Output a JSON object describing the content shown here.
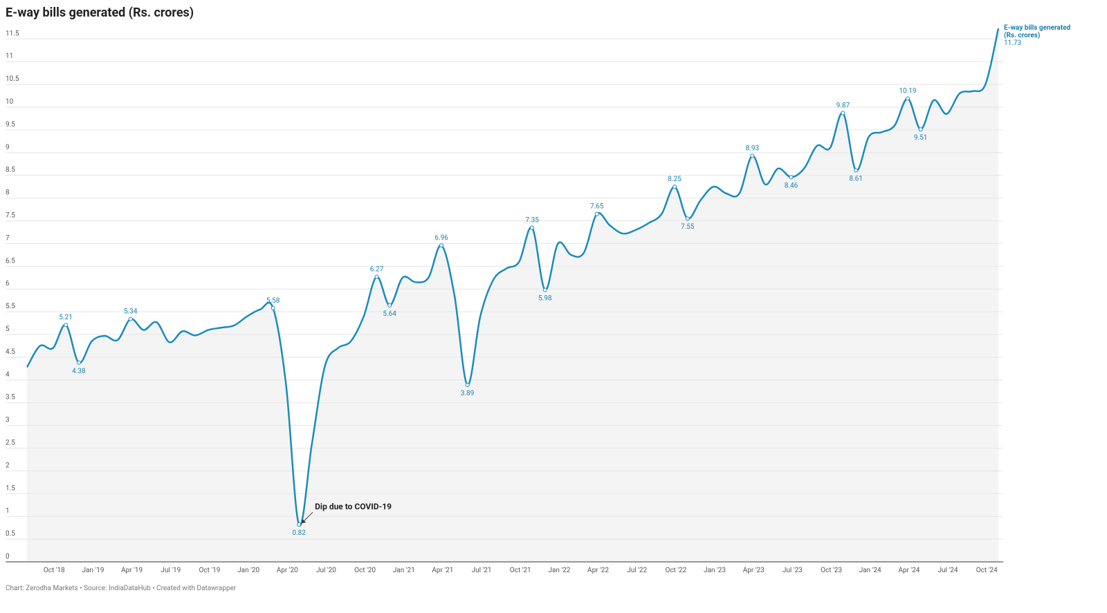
{
  "chart_data": {
    "type": "line",
    "title": "E-way bills generated (Rs. crores)",
    "footer": "Chart: Zerodha Markets • Source: IndiaDataHub • Created with Datawrapper",
    "annotation": "Dip due to COVID-19",
    "categories": [
      null,
      null,
      null,
      "Oct '18",
      null,
      null,
      "Jan '19",
      null,
      null,
      "Apr '19",
      null,
      null,
      "Jul '19",
      null,
      null,
      "Oct '19",
      null,
      null,
      "Jan '20",
      null,
      null,
      "Apr '20",
      null,
      null,
      "Jul '20",
      null,
      null,
      "Oct '20",
      null,
      null,
      "Jan '21",
      null,
      null,
      "Apr '21",
      null,
      null,
      "Jul '21",
      null,
      null,
      "Oct '21",
      null,
      null,
      "Jan '22",
      null,
      null,
      "Apr '22",
      null,
      null,
      "Jul '22",
      null,
      null,
      "Oct '22",
      null,
      null,
      "Jan '23",
      null,
      null,
      "Apr '23",
      null,
      null,
      "Jul '23",
      null,
      null,
      "Oct '23",
      null,
      null,
      "Jan '24",
      null,
      null,
      "Apr '24",
      null,
      null,
      "Jul '24",
      null,
      null,
      "Oct '24"
    ],
    "series": [
      {
        "name": "E-way bills generated (Rs. crores)",
        "color": "#1a8bbd",
        "values": [
          4.28,
          4.75,
          4.7,
          5.21,
          4.38,
          4.85,
          4.97,
          4.88,
          5.34,
          5.1,
          5.27,
          4.83,
          5.07,
          4.98,
          5.1,
          5.15,
          5.2,
          5.4,
          5.55,
          5.58,
          3.9,
          0.82,
          2.6,
          4.3,
          4.7,
          4.85,
          5.4,
          6.27,
          5.64,
          6.25,
          6.15,
          6.25,
          6.96,
          5.87,
          3.89,
          5.4,
          6.2,
          6.45,
          6.6,
          7.35,
          5.98,
          7.0,
          6.75,
          6.8,
          7.65,
          7.4,
          7.22,
          7.3,
          7.45,
          7.65,
          8.25,
          7.55,
          7.95,
          8.25,
          8.1,
          8.1,
          8.93,
          8.3,
          8.65,
          8.46,
          8.65,
          9.15,
          9.1,
          9.87,
          8.61,
          9.35,
          9.45,
          9.6,
          10.19,
          9.51,
          10.15,
          9.85,
          10.3,
          10.35,
          10.5,
          11.73
        ],
        "value_labels": [
          null,
          null,
          null,
          "5.21",
          "4.38",
          null,
          null,
          null,
          "5.34",
          null,
          null,
          null,
          null,
          null,
          null,
          null,
          null,
          null,
          null,
          "5.58",
          null,
          "0.82",
          null,
          null,
          null,
          null,
          null,
          "6.27",
          "5.64",
          null,
          null,
          null,
          "6.96",
          null,
          "3.89",
          null,
          null,
          null,
          null,
          "7.35",
          "5.98",
          null,
          null,
          null,
          "7.65",
          null,
          null,
          null,
          null,
          null,
          "8.25",
          "7.55",
          null,
          null,
          null,
          null,
          "8.93",
          null,
          null,
          "8.46",
          null,
          null,
          null,
          "9.87",
          "8.61",
          null,
          null,
          null,
          "10.19",
          "9.51",
          null,
          null,
          null,
          null,
          null,
          "11.73"
        ]
      }
    ],
    "ylim": [
      0,
      12
    ],
    "yticks": [
      0,
      0.5,
      1,
      1.5,
      2,
      2.5,
      3,
      3.5,
      4,
      4.5,
      5,
      5.5,
      6,
      6.5,
      7,
      7.5,
      8,
      8.5,
      9,
      9.5,
      10,
      10.5,
      11,
      11.5
    ],
    "grid": true
  }
}
